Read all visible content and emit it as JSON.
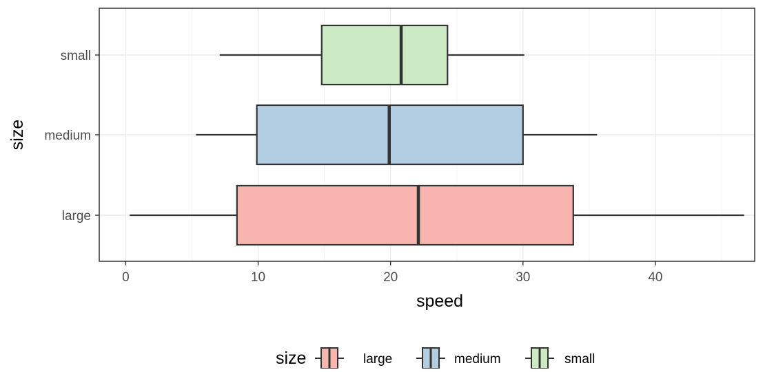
{
  "chart_data": {
    "type": "boxplot",
    "orientation": "horizontal",
    "xlabel": "speed",
    "ylabel": "size",
    "xlim": [
      -2,
      47.5
    ],
    "x_ticks": [
      0,
      10,
      20,
      30,
      40
    ],
    "x_tick_labels": [
      "0",
      "10",
      "20",
      "30",
      "40"
    ],
    "categories": [
      "large",
      "medium",
      "small"
    ],
    "grid": true,
    "legend": {
      "title": "size",
      "position": "bottom",
      "entries": [
        "large",
        "medium",
        "small"
      ]
    },
    "series": [
      {
        "category": "large",
        "whisker_low": 0.3,
        "q1": 8.4,
        "median": 22.1,
        "q3": 33.8,
        "whisker_high": 46.7,
        "color": "#F8B4AE"
      },
      {
        "category": "medium",
        "whisker_low": 5.3,
        "q1": 9.9,
        "median": 19.9,
        "q3": 30.0,
        "whisker_high": 35.6,
        "color": "#B3CDE3"
      },
      {
        "category": "small",
        "whisker_low": 7.1,
        "q1": 14.8,
        "median": 20.8,
        "q3": 24.3,
        "whisker_high": 30.1,
        "color": "#CCEBC5"
      }
    ],
    "colors": {
      "outline": "#333333",
      "panel_border": "#333333",
      "grid_major": "#EBEBEB",
      "grid_minor": "#F5F5F5",
      "axis_text": "#4D4D4D",
      "title_text": "#000000"
    }
  }
}
